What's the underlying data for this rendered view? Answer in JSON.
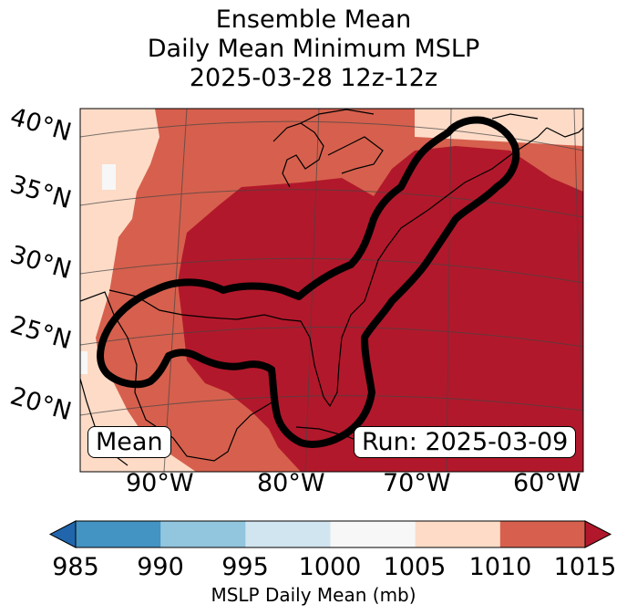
{
  "title": {
    "line1": "Ensemble Mean",
    "line2": "Daily Mean Minimum MSLP",
    "line3": "2025-03-28 12z-12z"
  },
  "map": {
    "lat_labels": [
      "40°N",
      "35°N",
      "30°N",
      "25°N",
      "20°N"
    ],
    "lon_labels": [
      "90°W",
      "80°W",
      "70°W",
      "60°W"
    ],
    "left_box": "Mean",
    "right_box": "Run: 2025-03-09"
  },
  "colorbar": {
    "ticks": [
      "985",
      "990",
      "995",
      "1000",
      "1005",
      "1010",
      "1015"
    ],
    "label": "MSLP Daily Mean (mb)",
    "colors": {
      "below": "#2166ac",
      "985-990": "#4393c3",
      "990-995": "#92c5de",
      "995-1000": "#d1e5f0",
      "1000-1005": "#f7f7f7",
      "1005-1010": "#fddbc7",
      "1010-1015": "#d6604d",
      "above": "#b2182b"
    }
  },
  "chart_data": {
    "type": "heatmap",
    "title": "Ensemble Mean Daily Mean Minimum MSLP 2025-03-28 12z-12z",
    "variable": "MSLP Daily Mean (mb)",
    "levels": [
      985,
      990,
      995,
      1000,
      1005,
      1010,
      1015
    ],
    "extend": "both",
    "lat_range": [
      15,
      40
    ],
    "lon_range": [
      -96,
      -58
    ],
    "lat_ticks": [
      20,
      25,
      30,
      35,
      40
    ],
    "lon_ticks": [
      -90,
      -80,
      -70,
      -60
    ],
    "regions": [
      {
        "range": "1000-1005",
        "where": "small patches near 40°N 93°W and Texas coast"
      },
      {
        "range": "1005-1010",
        "where": "western edge (Texas/Plains) and far north-east (north of 38°N east of 68°W)"
      },
      {
        "range": "1010-1015",
        "where": "band around the interior high, Mexico and Great Lakes"
      },
      {
        "range": ">1015",
        "where": "Gulf of Mexico, south-eastern US and western Atlantic"
      }
    ],
    "contour": {
      "value": "highlighted region",
      "where": "Gulf of Mexico, Florida, US east coast to Maine"
    },
    "run": "2025-03-09",
    "stat": "Mean"
  }
}
